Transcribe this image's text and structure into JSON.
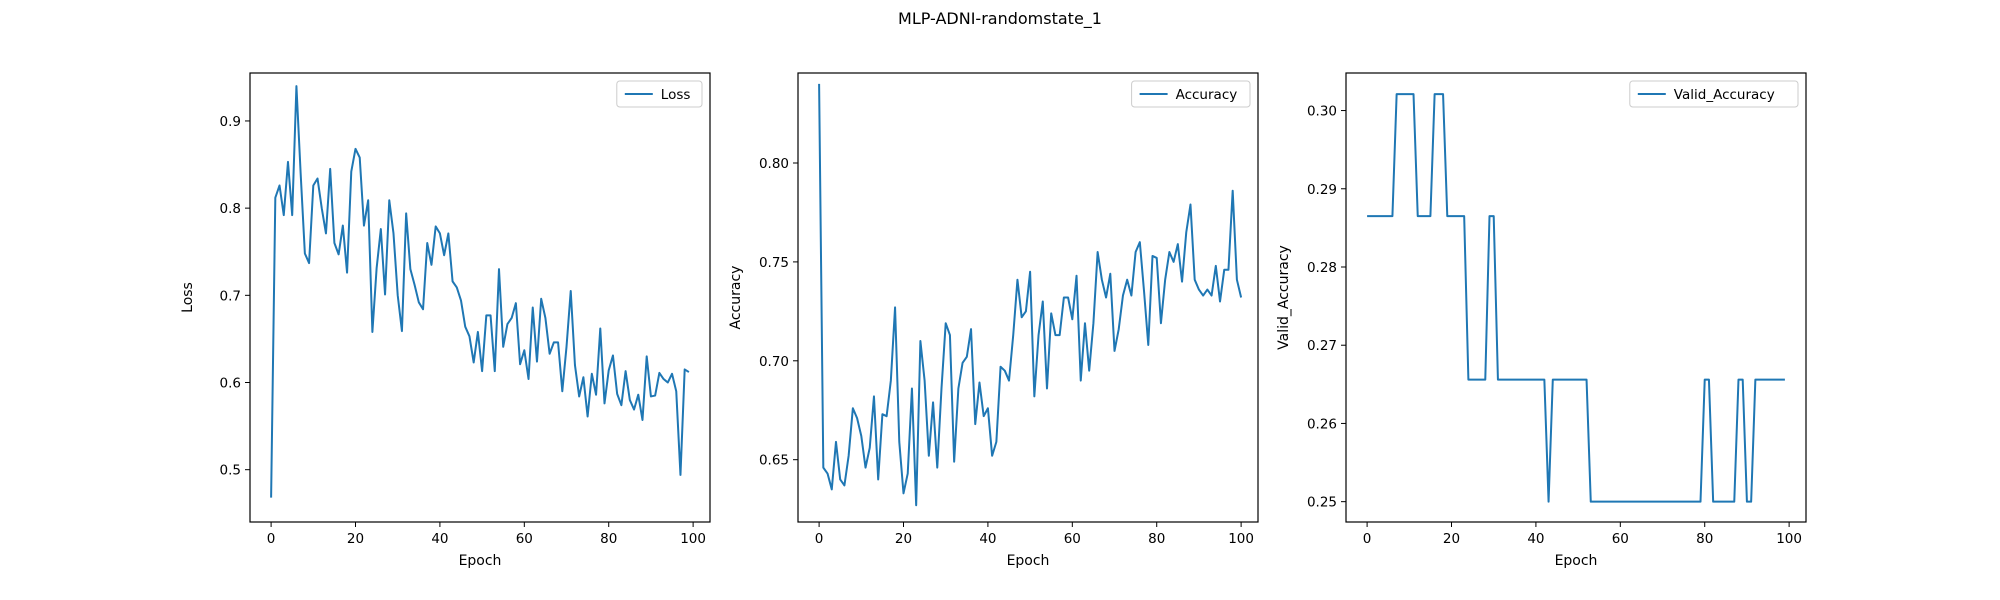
{
  "suptitle": "MLP-ADNI-randomstate_1",
  "colors": {
    "line": "#1f77b4",
    "axes": "#000000",
    "background": "#ffffff"
  },
  "chart_data": [
    {
      "type": "line",
      "xlabel": "Epoch",
      "ylabel": "Loss",
      "xlim": [
        -5,
        104
      ],
      "ylim": [
        0.44,
        0.955
      ],
      "xticks": [
        0,
        20,
        40,
        60,
        80,
        100
      ],
      "yticks": [
        0.5,
        0.6,
        0.7,
        0.8,
        0.9
      ],
      "ytick_labels": [
        "0.5",
        "0.6",
        "0.7",
        "0.8",
        "0.9"
      ],
      "legend": "upper right",
      "grid": false,
      "series": [
        {
          "name": "Loss",
          "values": [
            0.468,
            0.812,
            0.826,
            0.792,
            0.853,
            0.792,
            0.94,
            0.84,
            0.748,
            0.737,
            0.826,
            0.834,
            0.8,
            0.771,
            0.845,
            0.76,
            0.747,
            0.78,
            0.726,
            0.842,
            0.868,
            0.858,
            0.78,
            0.809,
            0.658,
            0.731,
            0.776,
            0.701,
            0.809,
            0.771,
            0.7,
            0.659,
            0.794,
            0.73,
            0.712,
            0.692,
            0.684,
            0.76,
            0.735,
            0.779,
            0.771,
            0.746,
            0.771,
            0.716,
            0.709,
            0.694,
            0.664,
            0.653,
            0.623,
            0.658,
            0.613,
            0.677,
            0.677,
            0.613,
            0.73,
            0.641,
            0.667,
            0.674,
            0.691,
            0.621,
            0.637,
            0.604,
            0.686,
            0.624,
            0.696,
            0.674,
            0.633,
            0.646,
            0.646,
            0.59,
            0.641,
            0.705,
            0.62,
            0.584,
            0.606,
            0.561,
            0.61,
            0.586,
            0.662,
            0.576,
            0.614,
            0.631,
            0.587,
            0.574,
            0.613,
            0.58,
            0.569,
            0.586,
            0.557,
            0.63,
            0.584,
            0.585,
            0.611,
            0.604,
            0.6,
            0.61,
            0.59,
            0.494,
            0.615,
            0.612
          ]
        }
      ]
    },
    {
      "type": "line",
      "xlabel": "Epoch",
      "ylabel": "Accuracy",
      "xlim": [
        -5,
        104
      ],
      "ylim": [
        0.6185,
        0.8455
      ],
      "xticks": [
        0,
        20,
        40,
        60,
        80,
        100
      ],
      "yticks": [
        0.65,
        0.7,
        0.75,
        0.8
      ],
      "ytick_labels": [
        "0.65",
        "0.70",
        "0.75",
        "0.80"
      ],
      "legend": "upper right",
      "grid": false,
      "series": [
        {
          "name": "Accuracy",
          "values": [
            0.84,
            0.646,
            0.643,
            0.635,
            0.659,
            0.64,
            0.637,
            0.652,
            0.676,
            0.671,
            0.662,
            0.646,
            0.656,
            0.682,
            0.64,
            0.673,
            0.672,
            0.69,
            0.727,
            0.659,
            0.633,
            0.643,
            0.686,
            0.627,
            0.71,
            0.69,
            0.652,
            0.679,
            0.646,
            0.686,
            0.719,
            0.713,
            0.649,
            0.686,
            0.699,
            0.702,
            0.716,
            0.668,
            0.689,
            0.672,
            0.676,
            0.652,
            0.659,
            0.697,
            0.695,
            0.69,
            0.713,
            0.741,
            0.722,
            0.725,
            0.745,
            0.682,
            0.713,
            0.73,
            0.686,
            0.724,
            0.713,
            0.713,
            0.732,
            0.732,
            0.721,
            0.743,
            0.69,
            0.719,
            0.695,
            0.719,
            0.755,
            0.741,
            0.732,
            0.744,
            0.705,
            0.716,
            0.733,
            0.741,
            0.733,
            0.755,
            0.76,
            0.735,
            0.708,
            0.753,
            0.752,
            0.719,
            0.741,
            0.755,
            0.75,
            0.759,
            0.74,
            0.765,
            0.779,
            0.741,
            0.736,
            0.733,
            0.736,
            0.733,
            0.748,
            0.73,
            0.746,
            0.746,
            0.786,
            0.741,
            0.732
          ]
        }
      ]
    },
    {
      "type": "line",
      "xlabel": "Epoch",
      "ylabel": "Valid_Accuracy",
      "xlim": [
        -5,
        104
      ],
      "ylim": [
        0.2474,
        0.3048
      ],
      "xticks": [
        0,
        20,
        40,
        60,
        80,
        100
      ],
      "yticks": [
        0.25,
        0.26,
        0.27,
        0.28,
        0.29,
        0.3
      ],
      "ytick_labels": [
        "0.25",
        "0.26",
        "0.27",
        "0.28",
        "0.29",
        "0.30"
      ],
      "legend": "upper right",
      "grid": false,
      "series": [
        {
          "name": "Valid_Accuracy",
          "values": [
            0.2865,
            0.2865,
            0.2865,
            0.2865,
            0.2865,
            0.2865,
            0.2865,
            0.3021,
            0.3021,
            0.3021,
            0.3021,
            0.3021,
            0.2865,
            0.2865,
            0.2865,
            0.2865,
            0.3021,
            0.3021,
            0.3021,
            0.2865,
            0.2865,
            0.2865,
            0.2865,
            0.2865,
            0.2656,
            0.2656,
            0.2656,
            0.2656,
            0.2656,
            0.2865,
            0.2865,
            0.2656,
            0.2656,
            0.2656,
            0.2656,
            0.2656,
            0.2656,
            0.2656,
            0.2656,
            0.2656,
            0.2656,
            0.2656,
            0.2656,
            0.25,
            0.2656,
            0.2656,
            0.2656,
            0.2656,
            0.2656,
            0.2656,
            0.2656,
            0.2656,
            0.2656,
            0.25,
            0.25,
            0.25,
            0.25,
            0.25,
            0.25,
            0.25,
            0.25,
            0.25,
            0.25,
            0.25,
            0.25,
            0.25,
            0.25,
            0.25,
            0.25,
            0.25,
            0.25,
            0.25,
            0.25,
            0.25,
            0.25,
            0.25,
            0.25,
            0.25,
            0.25,
            0.25,
            0.2656,
            0.2656,
            0.25,
            0.25,
            0.25,
            0.25,
            0.25,
            0.25,
            0.2656,
            0.2656,
            0.25,
            0.25,
            0.2656,
            0.2656,
            0.2656,
            0.2656,
            0.2656,
            0.2656,
            0.2656,
            0.2656
          ]
        }
      ]
    }
  ]
}
